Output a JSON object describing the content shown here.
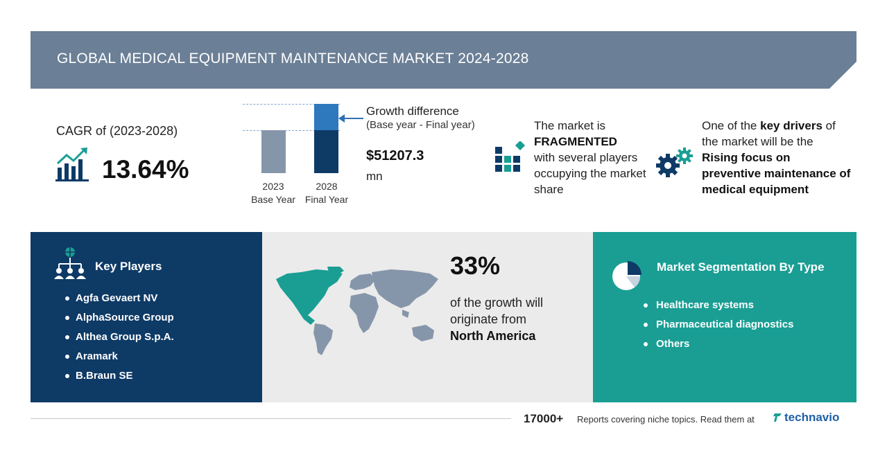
{
  "header": {
    "title": "GLOBAL MEDICAL EQUIPMENT MAINTENANCE MARKET 2024-2028"
  },
  "cagr": {
    "label": "CAGR of (2023-2028)",
    "value": "13.64%"
  },
  "growth": {
    "title": "Growth difference",
    "subtitle": "(Base year - Final year)",
    "value": "$51207.3",
    "unit": "mn",
    "bars": [
      {
        "year": "2023",
        "label": "Base Year",
        "color": "#8696aa"
      },
      {
        "year": "2028",
        "label": "Final Year",
        "color": "#0e3a66",
        "top_color": "#2e78bd"
      }
    ]
  },
  "market": {
    "line1": "The market is",
    "highlight": "FRAGMENTED",
    "line2": "with several players occupying the market share"
  },
  "driver": {
    "prefix1": "One of the ",
    "bold1": "key drivers",
    "prefix2": "of the market will be the",
    "bold2": "Rising focus on preventive maintenance of medical equipment"
  },
  "key_players": {
    "title": "Key Players",
    "items": [
      "Agfa Gevaert NV",
      "AlphaSource Group",
      "Althea Group S.p.A.",
      "Aramark",
      "B.Braun SE"
    ]
  },
  "region": {
    "percent": "33%",
    "text": "of the growth will originate from",
    "region": "North America"
  },
  "segmentation": {
    "title": "Market Segmentation By Type",
    "items": [
      "Healthcare systems",
      "Pharmaceutical diagnostics",
      "Others"
    ]
  },
  "footer": {
    "count": "17000+",
    "text": "Reports covering niche topics. Read them at",
    "brand": "technavio"
  },
  "colors": {
    "header": "#6b7f96",
    "navy": "#0e3a66",
    "teal": "#1a9e94",
    "grey_panel": "#ebebeb",
    "accent_blue": "#2e78bd"
  },
  "icons": [
    "growth-chart-icon",
    "fragmented-blocks-icon",
    "gears-icon",
    "network-people-icon",
    "world-map",
    "pie-chart-icon",
    "technavio-logo-icon"
  ]
}
